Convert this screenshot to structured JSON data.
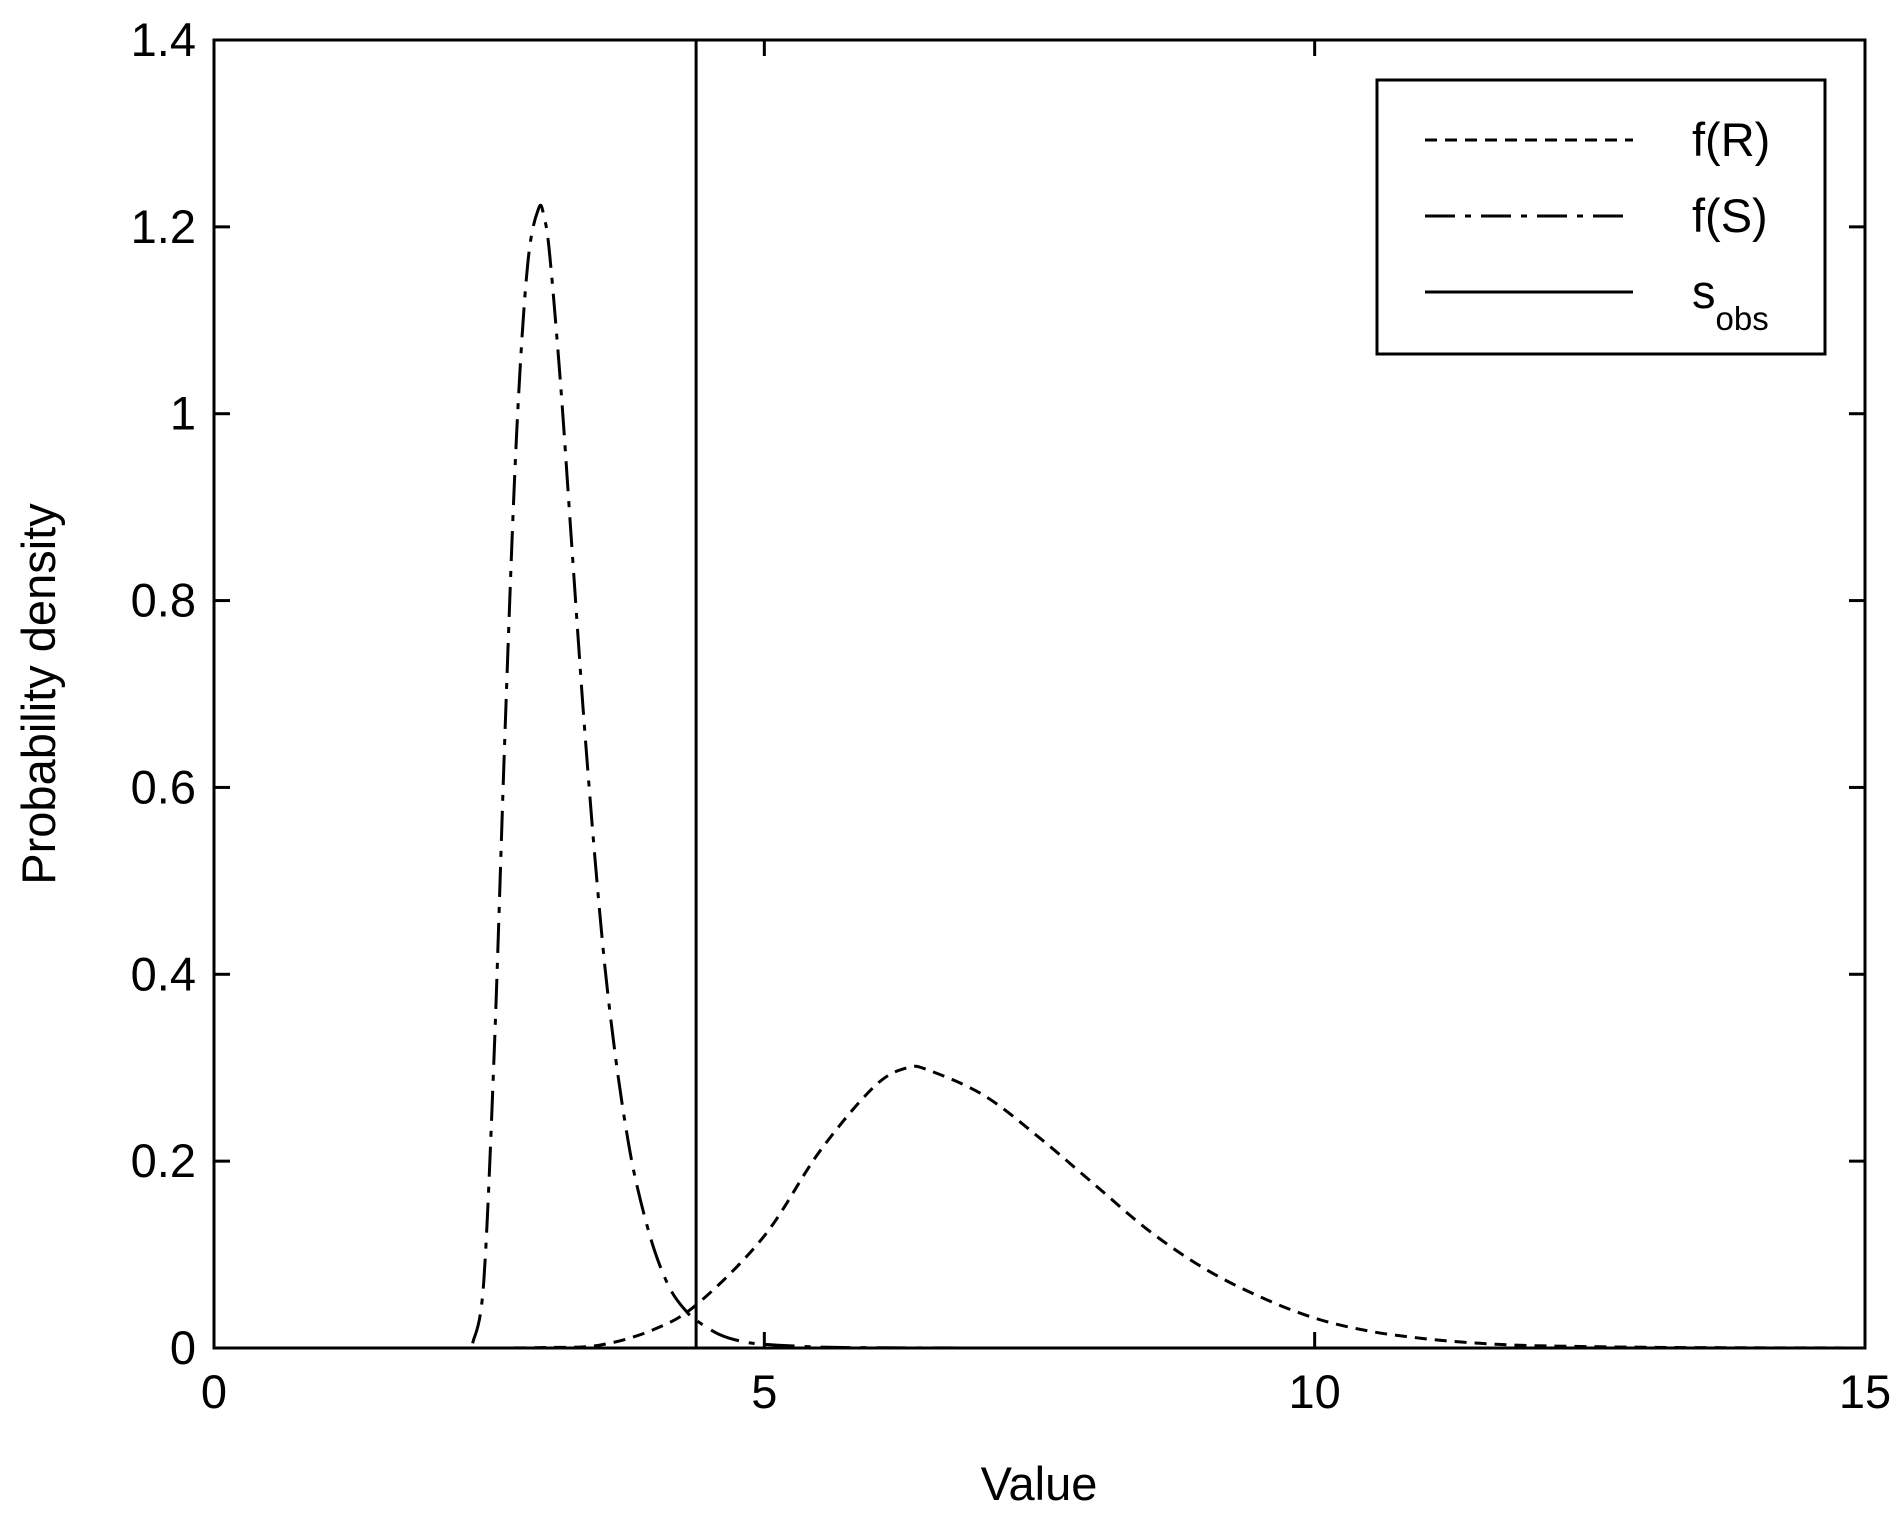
{
  "chart_data": {
    "type": "line",
    "title": "",
    "xlabel": "Value",
    "ylabel": "Probability density",
    "xlim": [
      0,
      15
    ],
    "ylim": [
      0,
      1.4
    ],
    "xticks": [
      0,
      5,
      10,
      15
    ],
    "xtick_labels": [
      "0",
      "5",
      "10",
      "15"
    ],
    "yticks": [
      0,
      0.2,
      0.4,
      0.6,
      0.8,
      1.0,
      1.2,
      1.4
    ],
    "ytick_labels": [
      "0",
      "0.2",
      "0.4",
      "0.6",
      "0.8",
      "1",
      "1.2",
      "1.4"
    ],
    "grid": false,
    "legend": {
      "position": "top-right",
      "entries": [
        {
          "label": "f(R)",
          "style": "dashed"
        },
        {
          "label": "f(S)",
          "style": "dash-dot"
        },
        {
          "label": "s",
          "subscript": "obs",
          "style": "solid"
        }
      ]
    },
    "series": [
      {
        "name": "f(R)",
        "style": "dashed",
        "x": [
          0,
          1,
          2,
          2.5,
          3,
          3.5,
          4,
          4.4,
          5,
          5.5,
          6,
          6.3,
          6.5,
          7,
          7.5,
          8,
          8.5,
          9,
          9.5,
          10,
          10.5,
          11,
          11.5,
          12,
          13,
          14,
          15
        ],
        "y": [
          0,
          0,
          0,
          0,
          0.0005,
          0.003,
          0.02,
          0.048,
          0.12,
          0.21,
          0.28,
          0.3,
          0.297,
          0.27,
          0.225,
          0.175,
          0.125,
          0.085,
          0.055,
          0.032,
          0.018,
          0.01,
          0.005,
          0.0025,
          0.0008,
          0.0002,
          5e-05
        ]
      },
      {
        "name": "f(S)",
        "style": "dash-dot",
        "x": [
          2.35,
          2.45,
          2.55,
          2.65,
          2.75,
          2.85,
          2.95,
          3.0,
          3.05,
          3.15,
          3.25,
          3.35,
          3.45,
          3.55,
          3.65,
          3.75,
          3.85,
          4.0,
          4.15,
          4.3,
          4.4,
          4.6,
          4.8,
          5.0,
          5.5,
          6.0,
          7.0,
          8.0
        ],
        "y": [
          0.005,
          0.07,
          0.33,
          0.68,
          0.98,
          1.16,
          1.22,
          1.21,
          1.17,
          1.03,
          0.86,
          0.69,
          0.54,
          0.41,
          0.31,
          0.23,
          0.17,
          0.105,
          0.062,
          0.038,
          0.028,
          0.014,
          0.007,
          0.004,
          0.001,
          0.0003,
          5e-05,
          0
        ]
      },
      {
        "name": "s",
        "subscript": "obs",
        "style": "solid",
        "x": [
          4.38,
          4.38
        ],
        "y": [
          0,
          1.4
        ]
      }
    ]
  }
}
